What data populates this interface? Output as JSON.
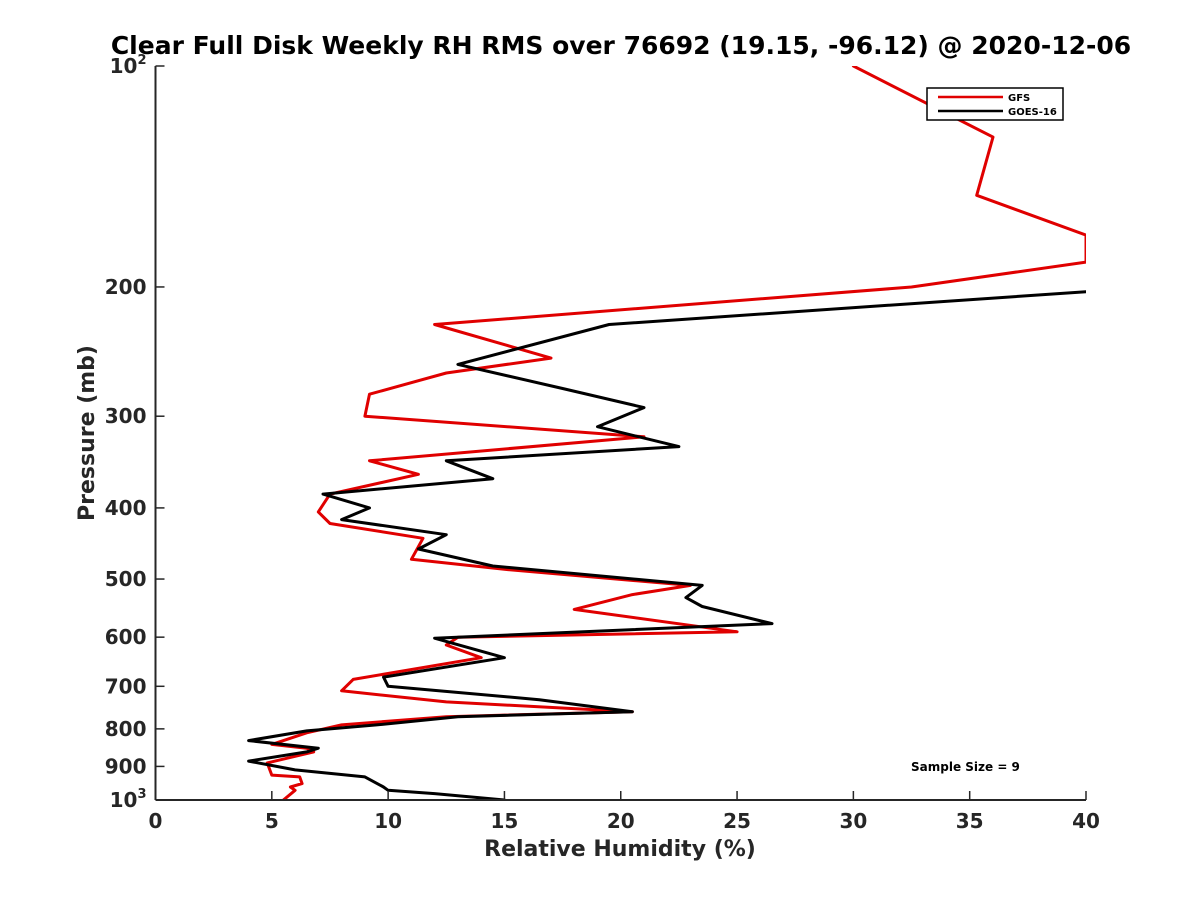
{
  "chart_data": {
    "type": "line",
    "title": "Clear Full Disk Weekly RH RMS over 76692 (19.15, -96.12) @ 2020-12-06",
    "xlabel": "Relative Humidity (%)",
    "ylabel": "Pressure (mb)",
    "xlim": [
      0,
      40
    ],
    "ylim": [
      100,
      1000
    ],
    "y_scale": "log",
    "y_reversed": true,
    "x_ticks": [
      0,
      5,
      10,
      15,
      20,
      25,
      30,
      35,
      40
    ],
    "y_ticks": [
      {
        "value": 100,
        "base": "10",
        "exp": "2"
      },
      {
        "value": 200,
        "label": "200"
      },
      {
        "value": 300,
        "label": "300"
      },
      {
        "value": 400,
        "label": "400"
      },
      {
        "value": 500,
        "label": "500"
      },
      {
        "value": 600,
        "label": "600"
      },
      {
        "value": 700,
        "label": "700"
      },
      {
        "value": 800,
        "label": "800"
      },
      {
        "value": 900,
        "label": "900"
      },
      {
        "value": 1000,
        "base": "10",
        "exp": "3"
      }
    ],
    "legend_position": "top-right",
    "annotation": "Sample Size = 9",
    "series": [
      {
        "name": "GFS",
        "color": "#e00000",
        "points": [
          [
            30.0,
            100
          ],
          [
            36.0,
            125
          ],
          [
            35.3,
            150
          ],
          [
            40.0,
            170
          ],
          [
            40.0,
            185
          ],
          [
            32.5,
            200
          ],
          [
            12.0,
            225
          ],
          [
            17.0,
            250
          ],
          [
            12.5,
            262
          ],
          [
            9.2,
            280
          ],
          [
            9.0,
            300
          ],
          [
            21.0,
            320
          ],
          [
            9.2,
            345
          ],
          [
            11.3,
            360
          ],
          [
            7.5,
            383
          ],
          [
            7.0,
            405
          ],
          [
            7.5,
            420
          ],
          [
            11.5,
            440
          ],
          [
            11.0,
            470
          ],
          [
            15.0,
            485
          ],
          [
            23.0,
            510
          ],
          [
            20.5,
            525
          ],
          [
            18.0,
            550
          ],
          [
            25.0,
            590
          ],
          [
            13.0,
            600
          ],
          [
            12.5,
            615
          ],
          [
            14.0,
            640
          ],
          [
            8.5,
            685
          ],
          [
            8.0,
            710
          ],
          [
            12.5,
            735
          ],
          [
            20.5,
            758
          ],
          [
            12.5,
            770
          ],
          [
            8.0,
            790
          ],
          [
            6.5,
            810
          ],
          [
            5.0,
            840
          ],
          [
            6.5,
            850
          ],
          [
            6.8,
            860
          ],
          [
            4.8,
            890
          ],
          [
            5.0,
            925
          ],
          [
            6.2,
            930
          ],
          [
            6.3,
            950
          ],
          [
            5.8,
            960
          ],
          [
            6.0,
            970
          ],
          [
            5.5,
            1000
          ]
        ]
      },
      {
        "name": "GOES-16",
        "color": "#000000",
        "points": [
          [
            40.0,
            203
          ],
          [
            19.5,
            225
          ],
          [
            13.0,
            255
          ],
          [
            17.5,
            275
          ],
          [
            21.0,
            292
          ],
          [
            19.0,
            310
          ],
          [
            22.5,
            330
          ],
          [
            12.5,
            345
          ],
          [
            14.5,
            365
          ],
          [
            7.2,
            383
          ],
          [
            9.2,
            400
          ],
          [
            8.0,
            415
          ],
          [
            12.5,
            435
          ],
          [
            11.3,
            455
          ],
          [
            14.5,
            480
          ],
          [
            23.5,
            510
          ],
          [
            22.8,
            530
          ],
          [
            23.5,
            545
          ],
          [
            26.5,
            575
          ],
          [
            12.0,
            602
          ],
          [
            15.0,
            640
          ],
          [
            9.8,
            680
          ],
          [
            10.0,
            700
          ],
          [
            16.5,
            730
          ],
          [
            20.5,
            758
          ],
          [
            13.0,
            770
          ],
          [
            9.5,
            790
          ],
          [
            6.5,
            805
          ],
          [
            4.0,
            830
          ],
          [
            7.0,
            850
          ],
          [
            6.5,
            860
          ],
          [
            4.0,
            885
          ],
          [
            6.0,
            910
          ],
          [
            9.0,
            930
          ],
          [
            9.8,
            960
          ],
          [
            10.0,
            970
          ],
          [
            12.0,
            980
          ],
          [
            15.0,
            1000
          ]
        ]
      }
    ]
  }
}
